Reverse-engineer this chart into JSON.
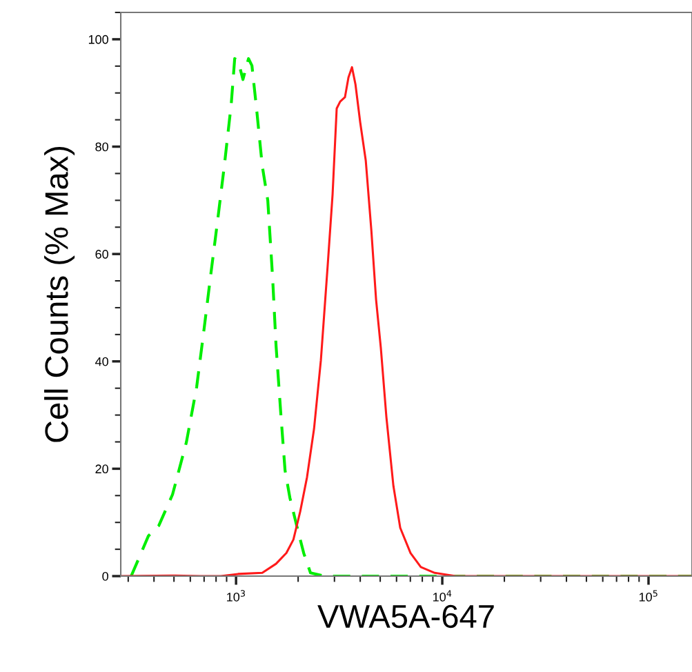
{
  "chart_data": {
    "type": "line",
    "xlabel": "VWA5A-647",
    "ylabel": "Cell Counts (% Max)",
    "log": "x",
    "xlim": [
      276,
      162500
    ],
    "xticks": [
      {
        "value": 1000,
        "label": "10$^{3}$"
      },
      {
        "value": 10000,
        "label": "10$^{4}$"
      },
      {
        "value": 100000,
        "label": "10$^{5}$"
      }
    ],
    "ylim": [
      0,
      105
    ],
    "yticks": [
      0,
      20,
      40,
      60,
      80,
      100
    ],
    "grid": false,
    "series": [
      {
        "color": "#00ee00",
        "line_style": "dashed",
        "x": [
          310,
          335,
          376,
          422,
          492,
          574,
          644,
          697,
          752,
          813,
          877,
          948,
          985,
          1023,
          1080,
          1149,
          1194,
          1260,
          1340,
          1425,
          1503,
          1563,
          1650,
          1728,
          1824,
          1968,
          2128,
          2296,
          2680,
          15740,
          162500
        ],
        "values": [
          0,
          3.0,
          7.5,
          9.4,
          15.2,
          24.9,
          35.2,
          45.5,
          55.8,
          66.1,
          76.4,
          88.0,
          96.4,
          96.0,
          92.5,
          96.4,
          95.1,
          86.7,
          76.4,
          70.0,
          55.8,
          42.9,
          30.0,
          19.7,
          14.6,
          9.4,
          4.3,
          0.6,
          0,
          0,
          0
        ]
      },
      {
        "color": "#ff1a1a",
        "line_style": "solid",
        "x": [
          276,
          492,
          670,
          844,
          1023,
          1340,
          1563,
          1754,
          1897,
          2046,
          2208,
          2388,
          2578,
          2786,
          2938,
          3076,
          3199,
          3373,
          3508,
          3648,
          3793,
          4000,
          4256,
          4529,
          4775,
          5036,
          5358,
          5794,
          6252,
          7015,
          7870,
          9185,
          11580,
          162500
        ],
        "values": [
          0,
          0.1,
          0,
          0,
          0.4,
          0.6,
          2.3,
          4.3,
          6.8,
          12.0,
          18.4,
          27.4,
          40.2,
          58.2,
          71.1,
          87.1,
          88.4,
          89.2,
          92.9,
          94.8,
          91.6,
          84.5,
          77.4,
          64.4,
          51.5,
          42.5,
          29.6,
          16.8,
          9.0,
          4.3,
          1.7,
          0.6,
          0,
          0
        ]
      }
    ]
  }
}
